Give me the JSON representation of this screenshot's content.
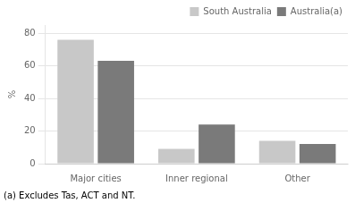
{
  "chart_data": {
    "type": "bar",
    "categories": [
      "Major cities",
      "Inner regional",
      "Other"
    ],
    "series": [
      {
        "name": "South Australia",
        "color": "#c8c8c8",
        "values": [
          76,
          9,
          14
        ]
      },
      {
        "name": "Australia(a)",
        "color": "#7a7a7a",
        "values": [
          63,
          24,
          12
        ]
      }
    ],
    "y_label": "%",
    "ylim": [
      0,
      85
    ],
    "yticks": [
      0,
      20,
      40,
      60,
      80
    ],
    "grid": true,
    "legend": "upper right",
    "annotation": "(a) Excludes Tas, ACT and NT."
  }
}
